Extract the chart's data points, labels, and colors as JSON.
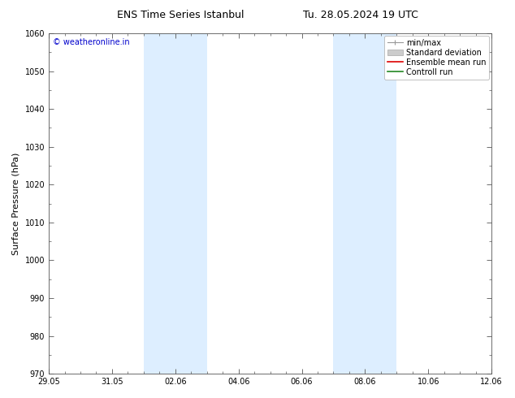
{
  "title_left": "ENS Time Series Istanbul",
  "title_right": "Tu. 28.05.2024 19 UTC",
  "ylabel": "Surface Pressure (hPa)",
  "ylim": [
    970,
    1060
  ],
  "yticks": [
    970,
    980,
    990,
    1000,
    1010,
    1020,
    1030,
    1040,
    1050,
    1060
  ],
  "xlim_start": 0,
  "xlim_end": 14,
  "xtick_positions": [
    0,
    2,
    4,
    6,
    8,
    10,
    12,
    14
  ],
  "xtick_labels": [
    "29.05",
    "31.05",
    "02.06",
    "04.06",
    "06.06",
    "08.06",
    "10.06",
    "12.06"
  ],
  "shaded_bands": [
    {
      "x_start": 3.0,
      "x_end": 5.0
    },
    {
      "x_start": 9.0,
      "x_end": 11.0
    }
  ],
  "band_color": "#ddeeff",
  "watermark_text": "© weatheronline.in",
  "watermark_color": "#0000cc",
  "legend_items": [
    {
      "label": "min/max",
      "color": "#aaaaaa",
      "type": "errorbar"
    },
    {
      "label": "Standard deviation",
      "color": "#cccccc",
      "type": "band"
    },
    {
      "label": "Ensemble mean run",
      "color": "#dd0000",
      "type": "line"
    },
    {
      "label": "Controll run",
      "color": "#228822",
      "type": "line"
    }
  ],
  "bg_color": "#ffffff",
  "plot_bg_color": "#ffffff",
  "figsize": [
    6.34,
    4.9
  ],
  "dpi": 100,
  "title_fontsize": 9,
  "axis_label_fontsize": 8,
  "tick_fontsize": 7,
  "legend_fontsize": 7,
  "watermark_fontsize": 7
}
